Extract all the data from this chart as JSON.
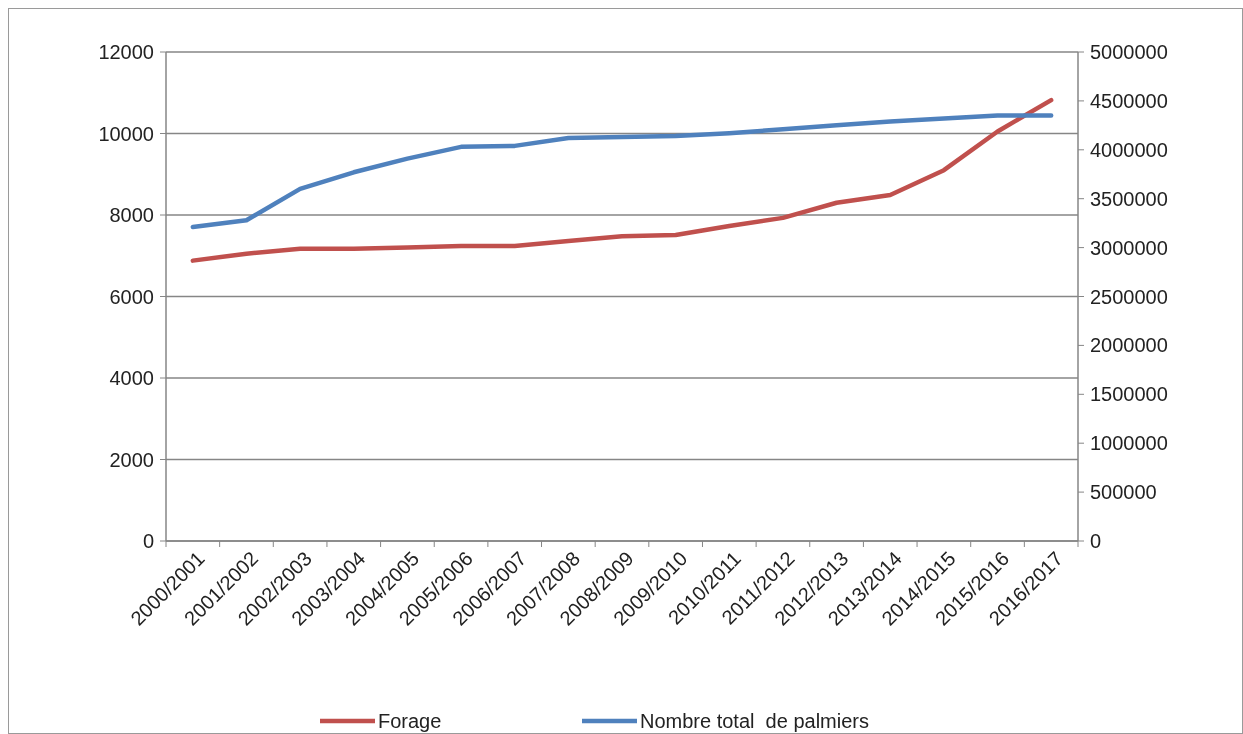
{
  "chart_data": {
    "type": "line",
    "categories": [
      "2000/2001",
      "2001/2002",
      "2002/2003",
      "2003/2004",
      "2004/2005",
      "2005/2006",
      "2006/2007",
      "2007/2008",
      "2008/2009",
      "2009/2010",
      "2010/2011",
      "2011/2012",
      "2012/2013",
      "2013/2014",
      "2014/2015",
      "2015/2016",
      "2016/2017"
    ],
    "series": [
      {
        "name": "Forage",
        "color": "#c0504d",
        "values": [
          6880,
          7050,
          7170,
          7170,
          7200,
          7240,
          7240,
          7360,
          7480,
          7510,
          7730,
          7930,
          8300,
          8490,
          9100,
          10050,
          10820
        ]
      },
      {
        "name": "Nombre total  de palmiers",
        "color": "#4f81bd",
        "axis": "y2",
        "values": [
          3210000,
          3280000,
          3600000,
          3770000,
          3910000,
          4030000,
          4040000,
          4120000,
          4130000,
          4140000,
          4170000,
          4210000,
          4250000,
          4290000,
          4320000,
          4350000,
          4350000
        ]
      }
    ],
    "ylim": [
      0,
      12000
    ],
    "yticks": [
      0,
      2000,
      4000,
      6000,
      8000,
      10000,
      12000
    ],
    "y2lim": [
      0,
      5000000
    ],
    "y2ticks": [
      0,
      500000,
      1000000,
      1500000,
      2000000,
      2500000,
      3000000,
      3500000,
      4000000,
      4500000,
      5000000
    ],
    "grid": "y",
    "legend": "bottom",
    "marker": "none",
    "line_style": "solid"
  }
}
